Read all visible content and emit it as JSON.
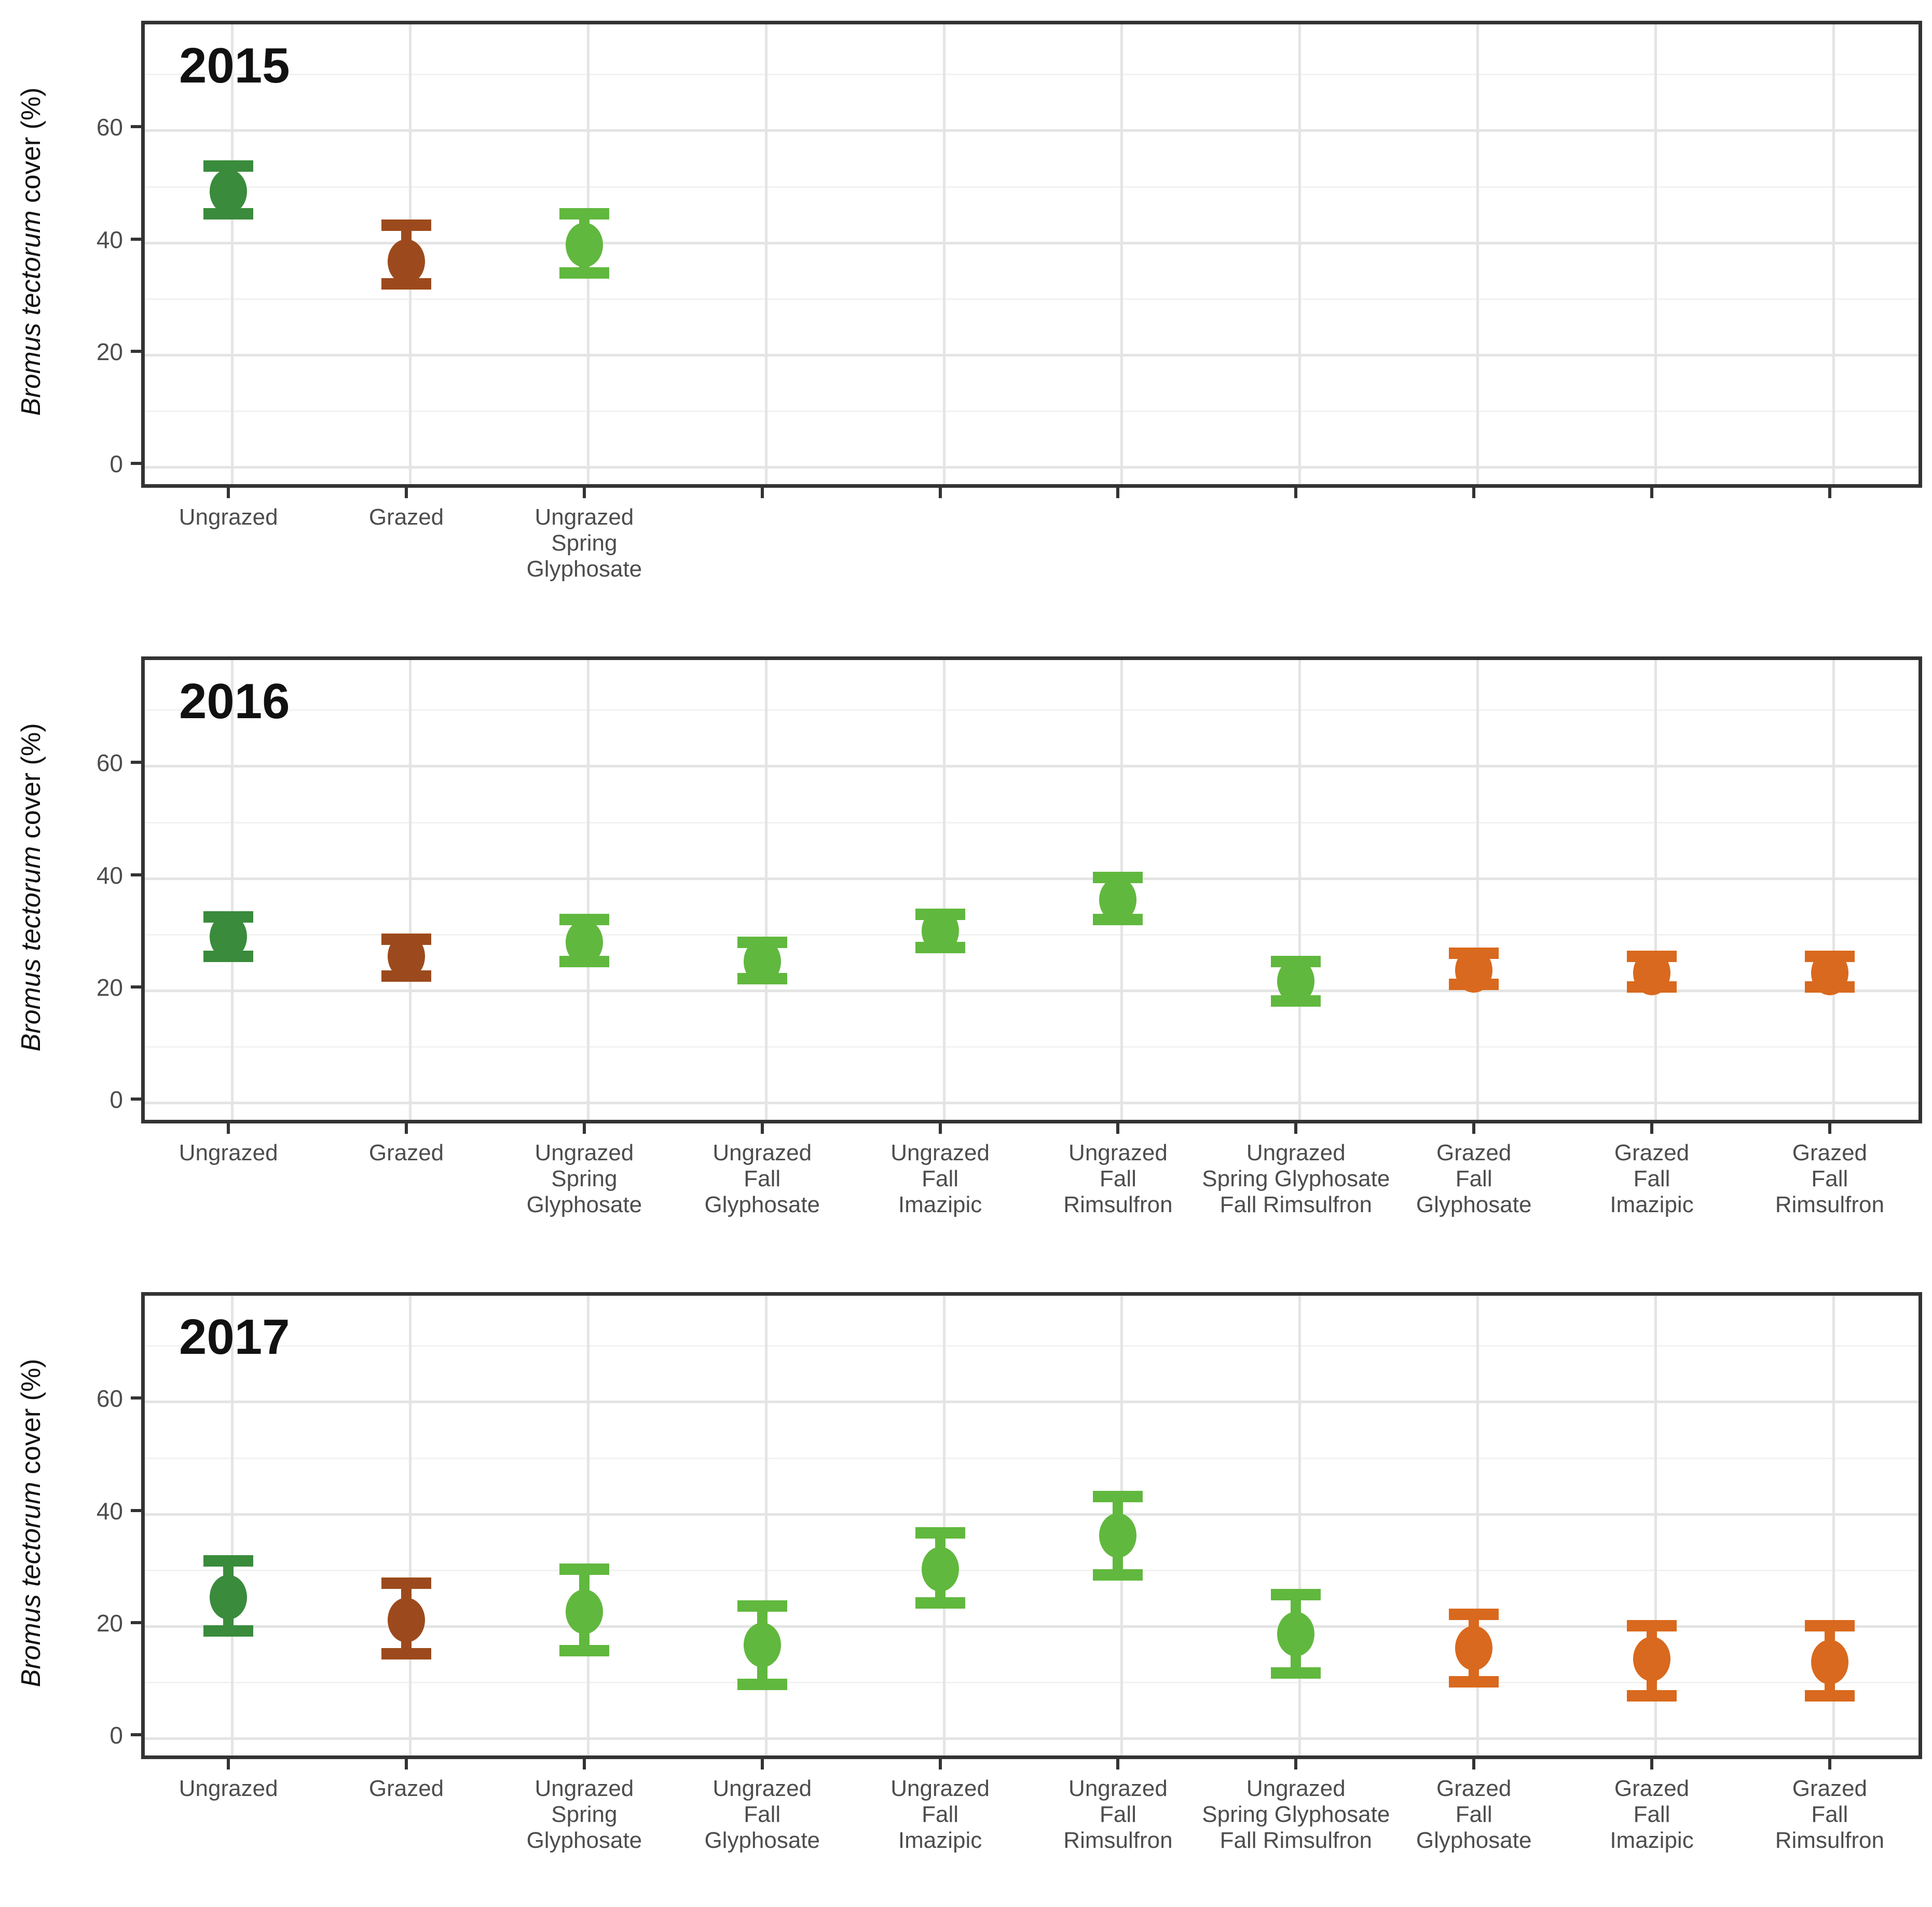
{
  "figure": {
    "y_axis_title_italic": "Bromus tectorum",
    "y_axis_title_rest": " cover (%)",
    "colors": {
      "ungrazed_control": "#3a8b3c",
      "grazed_control": "#9c4a1d",
      "ungrazed_treated": "#61b83e",
      "grazed_treated": "#d9691e",
      "axis_text": "#4d4d4d",
      "panel_border": "#333333",
      "grid_major": "#e4e4e4",
      "grid_minor": "#f2f2f2"
    }
  },
  "chart_data": [
    {
      "type": "pointrange",
      "title": "2015",
      "xlabel": "",
      "ylabel": "Bromus tectorum cover (%)",
      "ylim": [
        -4.3,
        78.9
      ],
      "yticks": [
        0,
        20,
        40,
        60
      ],
      "yticks_minor": [
        10,
        30,
        50,
        70
      ],
      "grid": true,
      "legend_position": "none",
      "categories": [
        {
          "lines": [
            "Ungrazed"
          ]
        },
        {
          "lines": [
            "Grazed"
          ]
        },
        {
          "lines": [
            "Ungrazed",
            "Spring",
            "Glyphosate"
          ]
        },
        {
          "lines": []
        },
        {
          "lines": []
        },
        {
          "lines": []
        },
        {
          "lines": []
        },
        {
          "lines": []
        },
        {
          "lines": []
        },
        {
          "lines": []
        }
      ],
      "points": [
        {
          "category": "Ungrazed",
          "value": 48.5,
          "lo": 44.5,
          "hi": 53.0,
          "color_key": "ungrazed_control"
        },
        {
          "category": "Grazed",
          "value": 36.0,
          "lo": 32.0,
          "hi": 42.5,
          "color_key": "grazed_control"
        },
        {
          "category": "Ungrazed Spring Glyphosate",
          "value": 39.0,
          "lo": 34.0,
          "hi": 44.5,
          "color_key": "ungrazed_treated"
        }
      ]
    },
    {
      "type": "pointrange",
      "title": "2016",
      "xlabel": "",
      "ylabel": "Bromus tectorum cover (%)",
      "ylim": [
        -4.3,
        78.9
      ],
      "yticks": [
        0,
        20,
        40,
        60
      ],
      "yticks_minor": [
        10,
        30,
        50,
        70
      ],
      "grid": true,
      "legend_position": "none",
      "categories": [
        {
          "lines": [
            "Ungrazed"
          ]
        },
        {
          "lines": [
            "Grazed"
          ]
        },
        {
          "lines": [
            "Ungrazed",
            "Spring",
            "Glyphosate"
          ]
        },
        {
          "lines": [
            "Ungrazed",
            "Fall",
            "Glyphosate"
          ]
        },
        {
          "lines": [
            "Ungrazed",
            "Fall",
            "Imazipic"
          ]
        },
        {
          "lines": [
            "Ungrazed",
            "Fall",
            "Rimsulfron"
          ]
        },
        {
          "lines": [
            "Ungrazed",
            "Spring Glyphosate",
            "Fall Rimsulfron"
          ]
        },
        {
          "lines": [
            "Grazed",
            "Fall",
            "Glyphosate"
          ]
        },
        {
          "lines": [
            "Grazed",
            "Fall",
            "Imazipic"
          ]
        },
        {
          "lines": [
            "Grazed",
            "Fall",
            "Rimsulfron"
          ]
        }
      ],
      "points": [
        {
          "category": "Ungrazed",
          "value": 29.0,
          "lo": 25.5,
          "hi": 32.5,
          "color_key": "ungrazed_control"
        },
        {
          "category": "Grazed",
          "value": 25.5,
          "lo": 22.0,
          "hi": 28.5,
          "color_key": "grazed_control"
        },
        {
          "category": "Ungrazed Spring Glyphosate",
          "value": 28.0,
          "lo": 24.5,
          "hi": 32.0,
          "color_key": "ungrazed_treated"
        },
        {
          "category": "Ungrazed Fall Glyphosate",
          "value": 24.5,
          "lo": 21.5,
          "hi": 28.0,
          "color_key": "ungrazed_treated"
        },
        {
          "category": "Ungrazed Fall Imazipic",
          "value": 30.0,
          "lo": 27.0,
          "hi": 33.0,
          "color_key": "ungrazed_treated"
        },
        {
          "category": "Ungrazed Fall Rimsulfron",
          "value": 35.5,
          "lo": 32.0,
          "hi": 39.5,
          "color_key": "ungrazed_treated"
        },
        {
          "category": "Ungrazed Spring Glyphosate Fall Rimsulfron",
          "value": 21.0,
          "lo": 17.5,
          "hi": 24.5,
          "color_key": "ungrazed_treated"
        },
        {
          "category": "Grazed Fall Glyphosate",
          "value": 23.0,
          "lo": 20.5,
          "hi": 26.0,
          "color_key": "grazed_treated"
        },
        {
          "category": "Grazed Fall Imazipic",
          "value": 22.5,
          "lo": 20.0,
          "hi": 25.5,
          "color_key": "grazed_treated"
        },
        {
          "category": "Grazed Fall Rimsulfron",
          "value": 22.5,
          "lo": 20.0,
          "hi": 25.5,
          "color_key": "grazed_treated"
        }
      ]
    },
    {
      "type": "pointrange",
      "title": "2017",
      "xlabel": "",
      "ylabel": "Bromus tectorum cover (%)",
      "ylim": [
        -4.3,
        78.9
      ],
      "yticks": [
        0,
        20,
        40,
        60
      ],
      "yticks_minor": [
        10,
        30,
        50,
        70
      ],
      "grid": true,
      "legend_position": "none",
      "categories": [
        {
          "lines": [
            "Ungrazed"
          ]
        },
        {
          "lines": [
            "Grazed"
          ]
        },
        {
          "lines": [
            "Ungrazed",
            "Spring",
            "Glyphosate"
          ]
        },
        {
          "lines": [
            "Ungrazed",
            "Fall",
            "Glyphosate"
          ]
        },
        {
          "lines": [
            "Ungrazed",
            "Fall",
            "Imazipic"
          ]
        },
        {
          "lines": [
            "Ungrazed",
            "Fall",
            "Rimsulfron"
          ]
        },
        {
          "lines": [
            "Ungrazed",
            "Spring Glyphosate",
            "Fall Rimsulfron"
          ]
        },
        {
          "lines": [
            "Grazed",
            "Fall",
            "Glyphosate"
          ]
        },
        {
          "lines": [
            "Grazed",
            "Fall",
            "Imazipic"
          ]
        },
        {
          "lines": [
            "Grazed",
            "Fall",
            "Rimsulfron"
          ]
        }
      ],
      "points": [
        {
          "category": "Ungrazed",
          "value": 24.5,
          "lo": 18.5,
          "hi": 31.0,
          "color_key": "ungrazed_control"
        },
        {
          "category": "Grazed",
          "value": 20.5,
          "lo": 14.5,
          "hi": 27.0,
          "color_key": "grazed_control"
        },
        {
          "category": "Ungrazed Spring Glyphosate",
          "value": 22.0,
          "lo": 15.0,
          "hi": 29.5,
          "color_key": "ungrazed_treated"
        },
        {
          "category": "Ungrazed Fall Glyphosate",
          "value": 16.0,
          "lo": 9.0,
          "hi": 23.0,
          "color_key": "ungrazed_treated"
        },
        {
          "category": "Ungrazed Fall Imazipic",
          "value": 29.5,
          "lo": 23.5,
          "hi": 36.0,
          "color_key": "ungrazed_treated"
        },
        {
          "category": "Ungrazed Fall Rimsulfron",
          "value": 35.5,
          "lo": 28.5,
          "hi": 42.5,
          "color_key": "ungrazed_treated"
        },
        {
          "category": "Ungrazed Spring Glyphosate Fall Rimsulfron",
          "value": 18.0,
          "lo": 11.0,
          "hi": 25.0,
          "color_key": "ungrazed_treated"
        },
        {
          "category": "Grazed Fall Glyphosate",
          "value": 15.5,
          "lo": 9.5,
          "hi": 21.5,
          "color_key": "grazed_treated"
        },
        {
          "category": "Grazed Fall Imazipic",
          "value": 13.5,
          "lo": 7.0,
          "hi": 19.5,
          "color_key": "grazed_treated"
        },
        {
          "category": "Grazed Fall Rimsulfron",
          "value": 13.0,
          "lo": 7.0,
          "hi": 19.5,
          "color_key": "grazed_treated"
        }
      ]
    }
  ]
}
